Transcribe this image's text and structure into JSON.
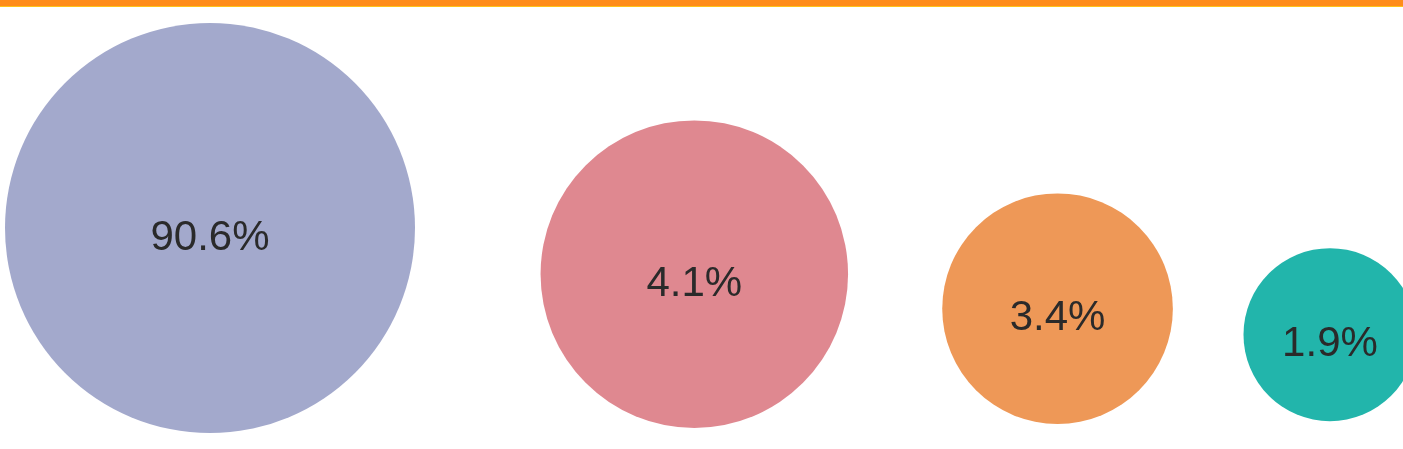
{
  "chart_data": {
    "type": "other",
    "categories": [
      null,
      null,
      null,
      null
    ],
    "values": [
      90.6,
      4.1,
      3.4,
      1.9
    ],
    "colors": [
      "#a3a9cc",
      "#df8890",
      "#ee9857",
      "#22b5ab"
    ],
    "value_labels": [
      "90.6%",
      "4.1%",
      "3.4%",
      "1.9%"
    ]
  }
}
